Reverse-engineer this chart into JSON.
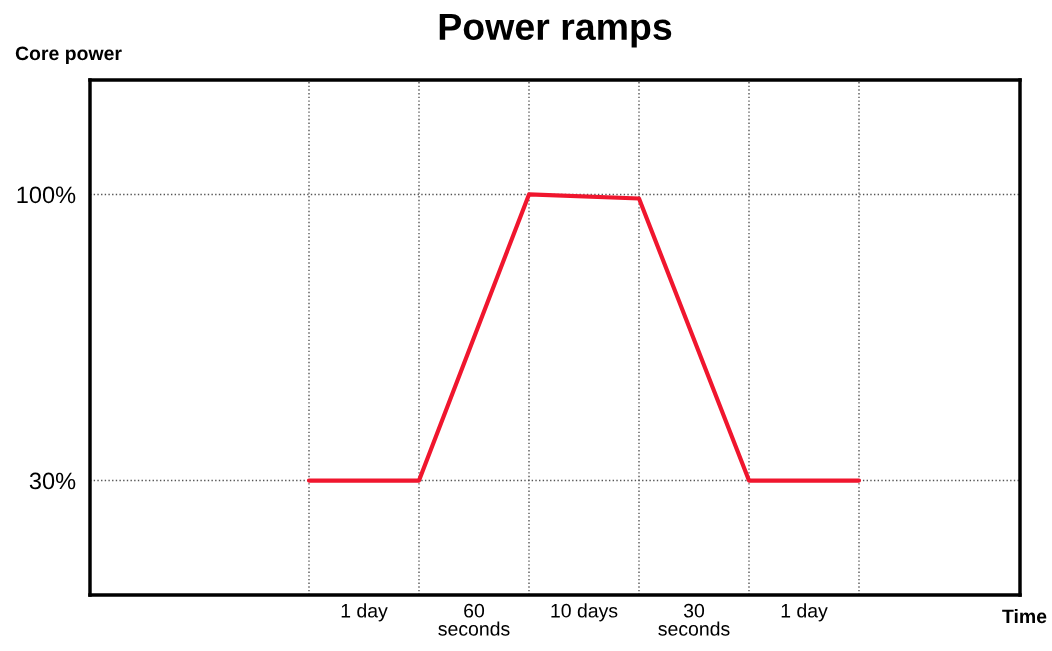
{
  "chart_data": {
    "type": "line",
    "title": "Power ramps",
    "ylabel": "Core power",
    "xlabel": "Time",
    "categories": [
      null,
      null,
      null,
      null,
      null,
      null
    ],
    "series": [
      {
        "color": "#f0162e",
        "values": [
          30,
          30,
          100,
          99,
          30,
          30
        ]
      }
    ],
    "ylim": [
      2,
      128
    ],
    "yticks": [
      {
        "value": 30,
        "label": "30%"
      },
      {
        "value": 100,
        "label": "100%"
      }
    ],
    "grid": true,
    "line_style": "solid",
    "marker": "none",
    "annotations": [
      "1 day",
      "60\nseconds",
      "10 days",
      "30\nseconds",
      "1 day"
    ]
  }
}
